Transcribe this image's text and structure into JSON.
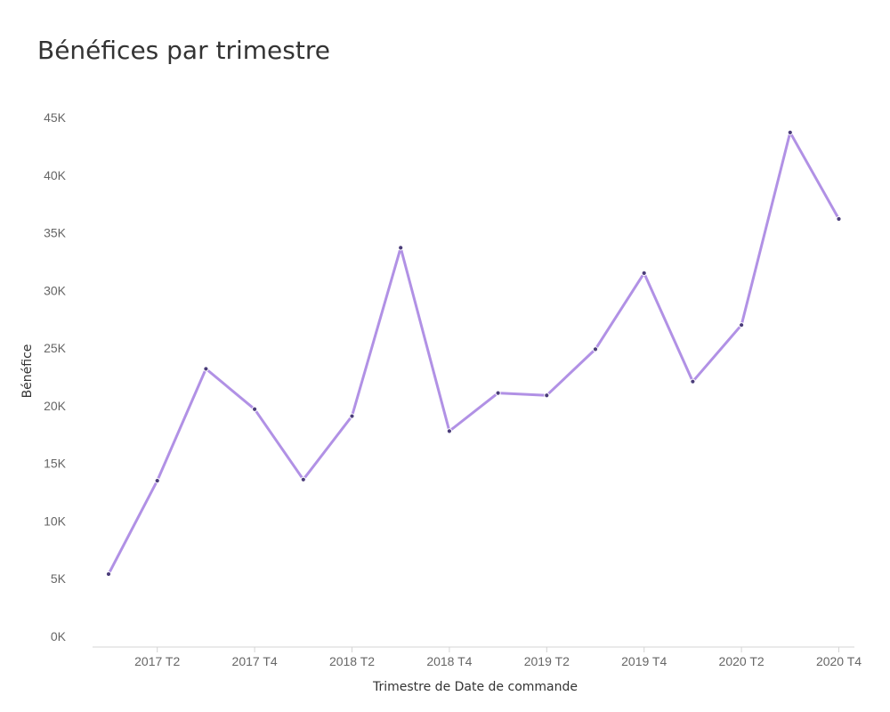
{
  "chart_data": {
    "type": "line",
    "title": "Bénéfices par trimestre",
    "xlabel": "Trimestre de Date de commande",
    "ylabel": "Bénéfice",
    "categories": [
      "2017 T1",
      "2017 T2",
      "2017 T3",
      "2017 T4",
      "2018 T1",
      "2018 T2",
      "2018 T3",
      "2018 T4",
      "2019 T1",
      "2019 T2",
      "2019 T3",
      "2019 T4",
      "2020 T1",
      "2020 T2",
      "2020 T3",
      "2020 T4"
    ],
    "x_tick_labels": [
      "2017 T2",
      "2017 T4",
      "2018 T2",
      "2018 T4",
      "2019 T2",
      "2019 T4",
      "2020 T2",
      "2020 T4"
    ],
    "y_tick_labels": [
      "0K",
      "5K",
      "10K",
      "15K",
      "20K",
      "25K",
      "30K",
      "35K",
      "40K",
      "45K"
    ],
    "ylim": [
      0,
      45000
    ],
    "grid": false,
    "series": [
      {
        "values": [
          5400,
          13500,
          23200,
          19700,
          13600,
          19100,
          33700,
          17800,
          21100,
          20900,
          24900,
          31500,
          22100,
          27000,
          43700,
          36200
        ]
      }
    ],
    "colors": {
      "line": "#b191e5",
      "marker": "#4b3d7a",
      "marker_outline": "#ffffff",
      "axis_line": "#d4d4d4",
      "tick_text": "#666666",
      "title_text": "#333333"
    }
  }
}
